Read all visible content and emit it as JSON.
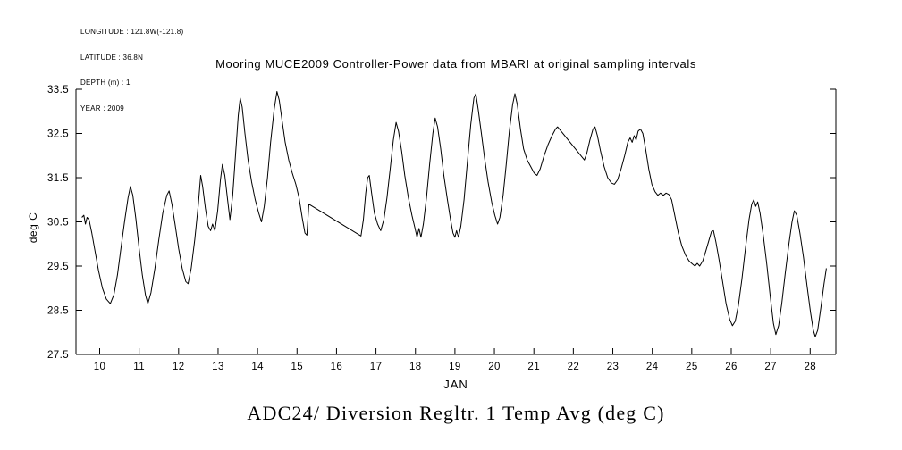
{
  "meta": {
    "longitude": "LONGITUDE : 121.8W(-121.8)",
    "latitude": "LATITUDE : 36.8N",
    "depth": "DEPTH (m) : 1",
    "year": "YEAR : 2009"
  },
  "title": "Mooring MUCE2009 Controller-Power data from MBARI at original sampling intervals",
  "caption": "ADC24/ Diversion Regltr. 1 Temp Avg (deg C)",
  "chart_data": {
    "type": "line",
    "title": "Mooring MUCE2009 Controller-Power data from MBARI at original sampling intervals",
    "xlabel": "JAN",
    "ylabel": "deg C",
    "xlim": [
      9.4,
      28.65
    ],
    "ylim": [
      27.5,
      33.5
    ],
    "xticks": [
      10,
      11,
      12,
      13,
      14,
      15,
      16,
      17,
      18,
      19,
      20,
      21,
      22,
      23,
      24,
      25,
      26,
      27,
      28
    ],
    "yticks": [
      27.5,
      28.5,
      29.5,
      30.5,
      31.5,
      32.5,
      33.5
    ],
    "grid": false,
    "legend": "none",
    "line_color": "#000000",
    "background": "#ffffff",
    "series": [
      {
        "name": "ADC24/ Diversion Regltr. 1 Temp Avg (deg C)",
        "x": [
          9.55,
          9.6,
          9.64,
          9.68,
          9.73,
          9.8,
          9.88,
          9.97,
          10.07,
          10.17,
          10.27,
          10.36,
          10.45,
          10.54,
          10.63,
          10.72,
          10.78,
          10.84,
          10.92,
          11.0,
          11.08,
          11.16,
          11.22,
          11.3,
          11.4,
          11.5,
          11.6,
          11.7,
          11.76,
          11.83,
          11.91,
          12.0,
          12.09,
          12.18,
          12.24,
          12.32,
          12.41,
          12.5,
          12.56,
          12.61,
          12.68,
          12.75,
          12.81,
          12.86,
          12.92,
          12.99,
          13.06,
          13.11,
          13.17,
          13.24,
          13.3,
          13.37,
          13.44,
          13.51,
          13.56,
          13.61,
          13.68,
          13.76,
          13.85,
          13.94,
          14.03,
          14.1,
          14.17,
          14.25,
          14.33,
          14.42,
          14.49,
          14.55,
          14.62,
          14.7,
          14.79,
          14.88,
          14.97,
          15.05,
          15.13,
          15.2,
          15.25,
          15.3,
          16.62,
          16.68,
          16.74,
          16.79,
          16.83,
          16.89,
          16.96,
          17.04,
          17.12,
          17.2,
          17.28,
          17.36,
          17.44,
          17.51,
          17.57,
          17.65,
          17.73,
          17.82,
          17.91,
          17.99,
          18.04,
          18.09,
          18.14,
          18.2,
          18.28,
          18.36,
          18.44,
          18.5,
          18.56,
          18.64,
          18.72,
          18.81,
          18.89,
          18.95,
          19.0,
          19.04,
          19.09,
          19.15,
          19.23,
          19.31,
          19.4,
          19.48,
          19.53,
          19.59,
          19.67,
          19.75,
          19.84,
          19.93,
          20.01,
          20.08,
          20.14,
          20.22,
          20.3,
          20.38,
          20.46,
          20.52,
          20.58,
          20.66,
          20.74,
          20.83,
          20.92,
          21.01,
          21.08,
          21.16,
          21.26,
          21.36,
          21.46,
          21.55,
          21.6,
          22.28,
          22.34,
          22.42,
          22.5,
          22.55,
          22.61,
          22.69,
          22.78,
          22.87,
          22.96,
          23.04,
          23.12,
          23.21,
          23.3,
          23.38,
          23.44,
          23.49,
          23.54,
          23.59,
          23.64,
          23.7,
          23.76,
          23.83,
          23.91,
          23.99,
          24.07,
          24.14,
          24.21,
          24.28,
          24.35,
          24.42,
          24.49,
          24.57,
          24.66,
          24.75,
          24.84,
          24.93,
          25.01,
          25.08,
          25.14,
          25.2,
          25.28,
          25.36,
          25.44,
          25.5,
          25.55,
          25.61,
          25.69,
          25.78,
          25.87,
          25.96,
          26.03,
          26.1,
          26.18,
          26.27,
          26.36,
          26.45,
          26.52,
          26.57,
          26.62,
          26.67,
          26.73,
          26.81,
          26.9,
          26.99,
          27.07,
          27.13,
          27.2,
          27.28,
          27.37,
          27.46,
          27.54,
          27.6,
          27.66,
          27.74,
          27.83,
          27.92,
          28.01,
          28.08,
          28.13,
          28.19,
          28.27,
          28.35,
          28.41
        ],
        "y": [
          30.6,
          30.65,
          30.45,
          30.6,
          30.55,
          30.25,
          29.85,
          29.4,
          29.0,
          28.75,
          28.65,
          28.85,
          29.3,
          29.9,
          30.5,
          31.05,
          31.3,
          31.1,
          30.55,
          29.9,
          29.3,
          28.85,
          28.65,
          28.9,
          29.45,
          30.1,
          30.7,
          31.1,
          31.2,
          30.9,
          30.45,
          29.9,
          29.45,
          29.15,
          29.1,
          29.45,
          30.1,
          30.9,
          31.55,
          31.3,
          30.8,
          30.4,
          30.3,
          30.45,
          30.3,
          30.75,
          31.45,
          31.8,
          31.55,
          31.0,
          30.55,
          31.1,
          32.0,
          32.9,
          33.3,
          33.1,
          32.5,
          31.9,
          31.4,
          31.0,
          30.7,
          30.5,
          30.85,
          31.5,
          32.3,
          33.05,
          33.45,
          33.25,
          32.8,
          32.3,
          31.9,
          31.6,
          31.35,
          31.05,
          30.6,
          30.25,
          30.2,
          30.9,
          30.18,
          30.55,
          31.15,
          31.5,
          31.55,
          31.15,
          30.7,
          30.45,
          30.3,
          30.55,
          31.05,
          31.7,
          32.35,
          32.75,
          32.55,
          32.1,
          31.55,
          31.05,
          30.65,
          30.35,
          30.15,
          30.35,
          30.15,
          30.45,
          31.05,
          31.8,
          32.5,
          32.85,
          32.65,
          32.15,
          31.55,
          31.0,
          30.55,
          30.25,
          30.15,
          30.3,
          30.15,
          30.4,
          31.0,
          31.8,
          32.7,
          33.3,
          33.4,
          33.05,
          32.5,
          31.95,
          31.4,
          30.95,
          30.65,
          30.45,
          30.6,
          31.1,
          31.8,
          32.55,
          33.15,
          33.4,
          33.15,
          32.6,
          32.15,
          31.9,
          31.75,
          31.6,
          31.55,
          31.7,
          32.0,
          32.25,
          32.45,
          32.6,
          32.65,
          31.9,
          32.05,
          32.35,
          32.6,
          32.65,
          32.45,
          32.1,
          31.75,
          31.5,
          31.38,
          31.35,
          31.45,
          31.7,
          32.0,
          32.3,
          32.4,
          32.3,
          32.45,
          32.35,
          32.55,
          32.6,
          32.5,
          32.15,
          31.7,
          31.35,
          31.18,
          31.1,
          31.15,
          31.1,
          31.15,
          31.12,
          31.0,
          30.65,
          30.25,
          29.95,
          29.75,
          29.62,
          29.55,
          29.5,
          29.56,
          29.5,
          29.62,
          29.85,
          30.1,
          30.28,
          30.3,
          30.05,
          29.65,
          29.15,
          28.65,
          28.3,
          28.15,
          28.25,
          28.6,
          29.2,
          29.9,
          30.55,
          30.9,
          31.0,
          30.85,
          30.95,
          30.7,
          30.2,
          29.55,
          28.8,
          28.2,
          27.95,
          28.15,
          28.65,
          29.35,
          30.0,
          30.5,
          30.75,
          30.65,
          30.25,
          29.7,
          29.05,
          28.45,
          28.05,
          27.9,
          28.05,
          28.55,
          29.1,
          29.45
        ]
      }
    ]
  }
}
